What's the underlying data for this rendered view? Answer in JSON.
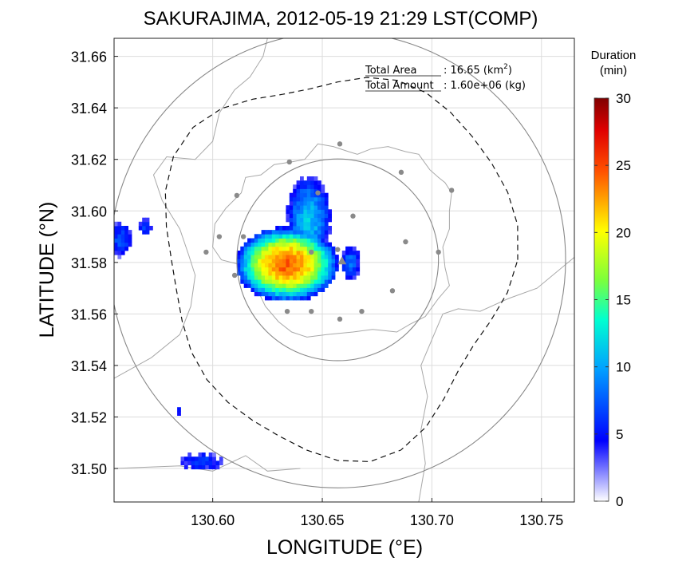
{
  "chart_data": {
    "type": "heatmap",
    "title": "SAKURAJIMA, 2012-05-19 21:29 LST(COMP)",
    "xlabel": "LONGITUDE (°E)",
    "ylabel": "LATITUDE (°N)",
    "xlim": [
      130.555,
      130.765
    ],
    "ylim": [
      31.487,
      31.667
    ],
    "x_ticks": [
      "130.60",
      "130.65",
      "130.70",
      "130.75"
    ],
    "y_ticks": [
      "31.50",
      "31.52",
      "31.54",
      "31.56",
      "31.58",
      "31.60",
      "31.62",
      "31.64",
      "31.66"
    ],
    "grid": true,
    "annotation": {
      "area_label": "Total Area",
      "area_value": ": 16.65 (km",
      "area_sup": "2",
      "area_close": ")",
      "amount_label": "Total Amount",
      "amount_value": ": 1.60e+06 (kg)"
    },
    "colorbar": {
      "title_line1": "Duration",
      "title_line2": "(min)",
      "min": 0,
      "max": 30,
      "ticks": [
        "0",
        "5",
        "10",
        "15",
        "20",
        "25",
        "30"
      ]
    },
    "center": {
      "lon": 130.657,
      "lat": 31.581
    },
    "range_circles_deg": [
      0.046,
      0.104
    ],
    "vent": {
      "lon": 130.659,
      "lat": 31.5805
    },
    "stations": [
      {
        "lon": 130.635,
        "lat": 31.619
      },
      {
        "lon": 130.658,
        "lat": 31.626
      },
      {
        "lon": 130.686,
        "lat": 31.615
      },
      {
        "lon": 130.611,
        "lat": 31.606
      },
      {
        "lon": 130.648,
        "lat": 31.607
      },
      {
        "lon": 130.664,
        "lat": 31.598
      },
      {
        "lon": 130.709,
        "lat": 31.608
      },
      {
        "lon": 130.603,
        "lat": 31.59
      },
      {
        "lon": 130.688,
        "lat": 31.588
      },
      {
        "lon": 130.703,
        "lat": 31.584
      },
      {
        "lon": 130.614,
        "lat": 31.59
      },
      {
        "lon": 130.657,
        "lat": 31.585
      },
      {
        "lon": 130.645,
        "lat": 31.584
      },
      {
        "lon": 130.597,
        "lat": 31.584
      },
      {
        "lon": 130.61,
        "lat": 31.575
      },
      {
        "lon": 130.682,
        "lat": 31.569
      },
      {
        "lon": 130.634,
        "lat": 31.561
      },
      {
        "lon": 130.645,
        "lat": 31.561
      },
      {
        "lon": 130.658,
        "lat": 31.558
      },
      {
        "lon": 130.668,
        "lat": 31.561
      }
    ],
    "clusters": [
      {
        "lon": 130.633,
        "lat": 31.5785,
        "rx": 0.021,
        "ry": 0.013,
        "peak": 22
      },
      {
        "lon": 130.643,
        "lat": 31.596,
        "rx": 0.009,
        "ry": 0.015,
        "peak": 9
      },
      {
        "lon": 130.662,
        "lat": 31.579,
        "rx": 0.004,
        "ry": 0.006,
        "peak": 6
      },
      {
        "lon": 130.557,
        "lat": 31.588,
        "rx": 0.005,
        "ry": 0.006,
        "peak": 5
      },
      {
        "lon": 130.568,
        "lat": 31.593,
        "rx": 0.003,
        "ry": 0.003,
        "peak": 4
      },
      {
        "lon": 130.584,
        "lat": 31.521,
        "rx": 0.001,
        "ry": 0.002,
        "peak": 3
      },
      {
        "lon": 130.594,
        "lat": 31.502,
        "rx": 0.009,
        "ry": 0.003,
        "peak": 4
      }
    ]
  }
}
